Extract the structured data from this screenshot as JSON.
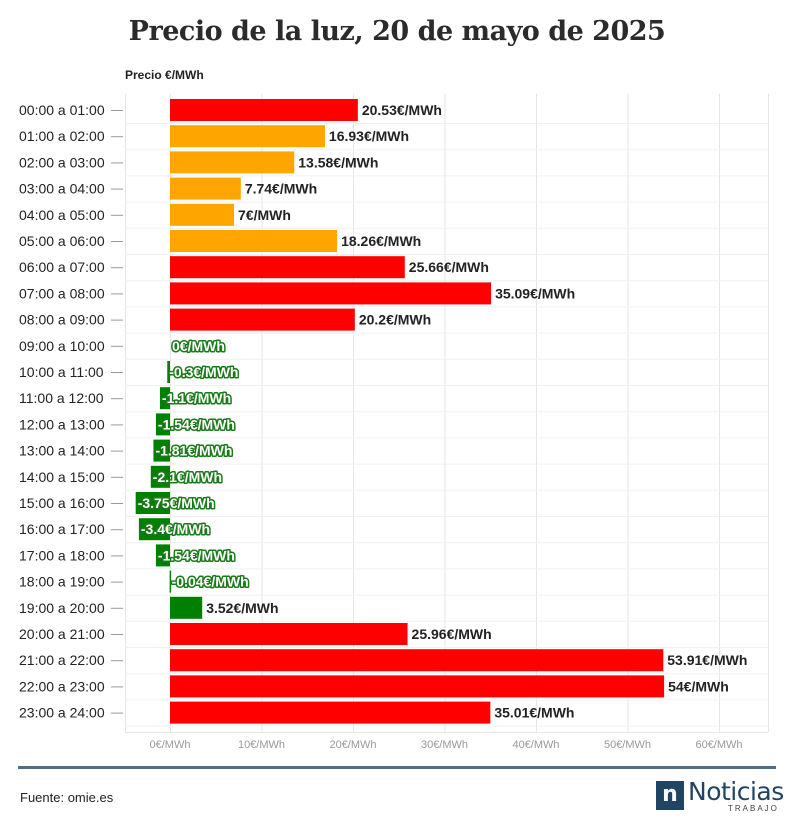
{
  "chart_data": {
    "type": "bar",
    "orientation": "horizontal",
    "title": "Precio de la luz, 20 de mayo de 2025",
    "ylabel": "Precio €/MWh",
    "xlim": [
      -5,
      65
    ],
    "x_ticks": [
      {
        "value": 0,
        "label": "0€/MWh"
      },
      {
        "value": 10,
        "label": "10€/MWh"
      },
      {
        "value": 20,
        "label": "20€/MWh"
      },
      {
        "value": 30,
        "label": "30€/MWh"
      },
      {
        "value": 40,
        "label": "40€/MWh"
      },
      {
        "value": 50,
        "label": "50€/MWh"
      },
      {
        "value": 60,
        "label": "60€/MWh"
      }
    ],
    "categories": [
      "00:00 a 01:00",
      "01:00 a 02:00",
      "02:00 a 03:00",
      "03:00 a 04:00",
      "04:00 a 05:00",
      "05:00 a 06:00",
      "06:00 a 07:00",
      "07:00 a 08:00",
      "08:00 a 09:00",
      "09:00 a 10:00",
      "10:00 a 11:00",
      "11:00 a 12:00",
      "12:00 a 13:00",
      "13:00 a 14:00",
      "14:00 a 15:00",
      "15:00 a 16:00",
      "16:00 a 17:00",
      "17:00 a 18:00",
      "18:00 a 19:00",
      "19:00 a 20:00",
      "20:00 a 21:00",
      "21:00 a 22:00",
      "22:00 a 23:00",
      "23:00 a 24:00"
    ],
    "values": [
      20.53,
      16.93,
      13.58,
      7.74,
      7,
      18.26,
      25.66,
      35.09,
      20.2,
      0,
      -0.3,
      -1.1,
      -1.54,
      -1.81,
      -2.1,
      -3.75,
      -3.4,
      -1.54,
      -0.04,
      3.52,
      25.96,
      53.91,
      54,
      35.01
    ],
    "value_labels": [
      "20.53€/MWh",
      "16.93€/MWh",
      "13.58€/MWh",
      "7.74€/MWh",
      "7€/MWh",
      "18.26€/MWh",
      "25.66€/MWh",
      "35.09€/MWh",
      "20.2€/MWh",
      "0€/MWh",
      "-0.3€/MWh",
      "-1.1€/MWh",
      "-1.54€/MWh",
      "-1.81€/MWh",
      "-2.1€/MWh",
      "-3.75€/MWh",
      "-3.4€/MWh",
      "-1.54€/MWh",
      "-0.04€/MWh",
      "3.52€/MWh",
      "25.96€/MWh",
      "53.91€/MWh",
      "54€/MWh",
      "35.01€/MWh"
    ],
    "bar_colors": [
      "#ff0000",
      "#ffa500",
      "#ffa500",
      "#ffa500",
      "#ffa500",
      "#ffa500",
      "#ff0000",
      "#ff0000",
      "#ff0000",
      "#008000",
      "#008000",
      "#008000",
      "#008000",
      "#008000",
      "#008000",
      "#008000",
      "#008000",
      "#008000",
      "#008000",
      "#008000",
      "#ff0000",
      "#ff0000",
      "#ff0000",
      "#ff0000"
    ],
    "grid": true
  },
  "colors": {
    "high": "#ff0000",
    "medium": "#ffa500",
    "low": "#008000",
    "brand": "#1f4464"
  },
  "footer": {
    "source": "Fuente: omie.es"
  },
  "logo": {
    "mark": "n",
    "word": "Noticias",
    "sub": "TRABAJO"
  }
}
